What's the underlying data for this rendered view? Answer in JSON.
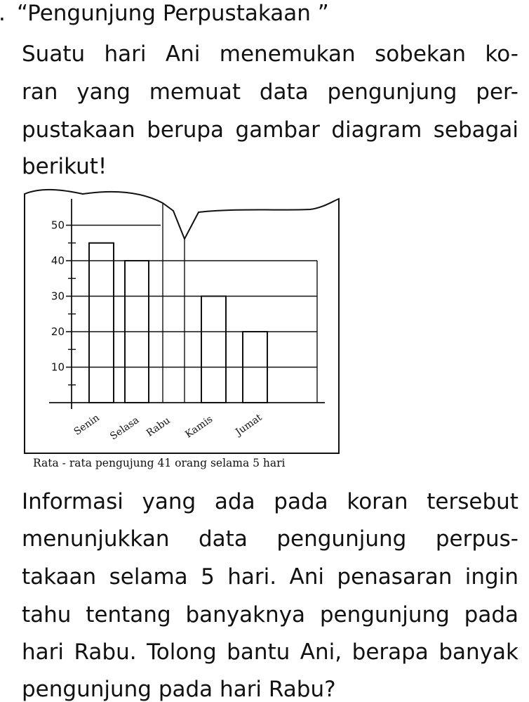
{
  "problem": {
    "number_prefix": ".",
    "title": "“Pengunjung Perpustakaan ”",
    "intro_lines": [
      [
        "Suatu",
        "hari",
        "Ani",
        "menemukan",
        "sobekan",
        "ko-"
      ],
      [
        "ran",
        "yang",
        "memuat",
        "data",
        "pengunjung",
        "per-"
      ],
      [
        "pustakaan",
        "berupa",
        "gambar",
        "diagram",
        "sebagai"
      ],
      [
        "berikut!"
      ]
    ],
    "outro_lines": [
      [
        "Informasi",
        "yang",
        "ada",
        "pada",
        "koran",
        "tersebut"
      ],
      [
        "menunjukkan",
        "data",
        "pengunjung",
        "perpus-"
      ],
      [
        "takaan",
        "selama",
        "5",
        "hari.",
        "Ani",
        "penasaran",
        "ingin"
      ],
      [
        "tahu",
        "tentang",
        "banyaknya",
        "pengunjung",
        "pada"
      ],
      [
        "hari",
        "Rabu.",
        "Tolong",
        "bantu",
        "Ani,",
        "berapa",
        "banyak"
      ],
      [
        "pengunjung",
        "pada",
        "hari",
        "Rabu?"
      ]
    ]
  },
  "chart_data": {
    "type": "bar",
    "categories": [
      "Senin",
      "Selasa",
      "Rabu",
      "Kamis",
      "Jumat"
    ],
    "values": [
      45,
      40,
      null,
      30,
      20
    ],
    "hidden_category": "Rabu",
    "ylim": [
      0,
      55
    ],
    "yticks": [
      10,
      20,
      30,
      40,
      50
    ],
    "yticks_labels": [
      "10",
      "20",
      "30",
      "40",
      "50"
    ],
    "minor_yticks": [
      5,
      15,
      25,
      35,
      45
    ],
    "grid": true,
    "caption": "Rata - rata pengujung 41 orang selama 5 hari"
  }
}
